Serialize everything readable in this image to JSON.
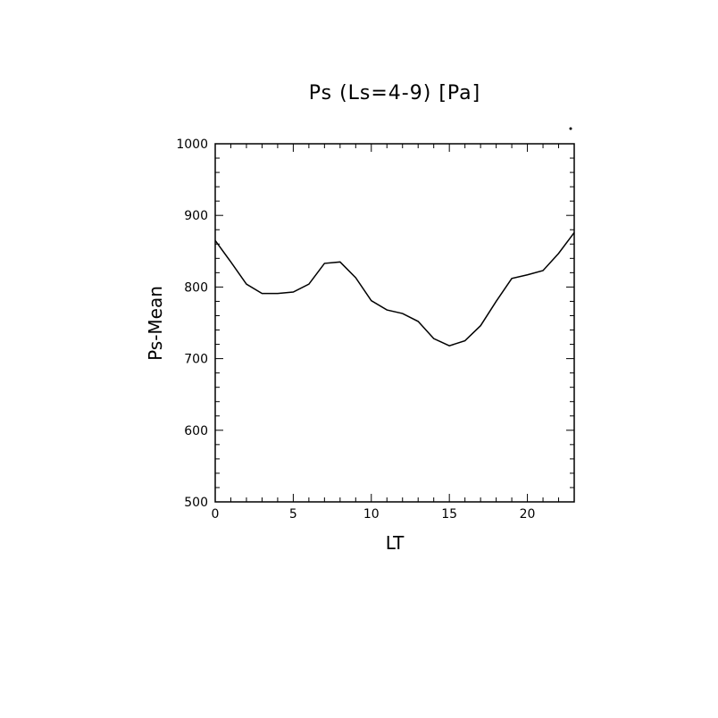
{
  "chart_data": {
    "type": "line",
    "title": "Ps (Ls=4-9) [Pa]",
    "xlabel": "LT",
    "ylabel": "Ps-Mean",
    "xlim": [
      0,
      23
    ],
    "ylim": [
      500,
      1000
    ],
    "xticks": [
      0,
      5,
      10,
      15,
      20
    ],
    "yticks": [
      500,
      600,
      700,
      800,
      900,
      1000
    ],
    "grid": false,
    "legend": "none",
    "line_color": "#000000",
    "series": [
      {
        "x": [
          0,
          1,
          2,
          3,
          4,
          5,
          6,
          7,
          8,
          9,
          10,
          11,
          12,
          13,
          14,
          15,
          16,
          17,
          18,
          19,
          20,
          21,
          22,
          23
        ],
        "values": [
          865,
          835,
          804,
          791,
          791,
          793,
          804,
          833,
          835,
          813,
          781,
          768,
          763,
          752,
          728,
          718,
          725,
          746,
          780,
          812,
          817,
          823,
          847,
          876
        ]
      }
    ]
  }
}
